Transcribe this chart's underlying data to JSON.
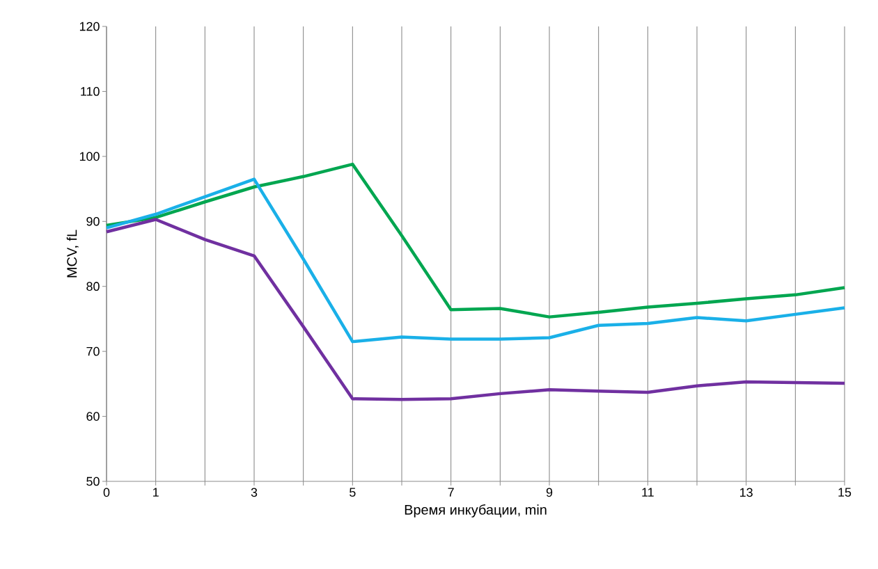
{
  "chart_data": {
    "type": "line",
    "xlabel": "Время инкубации, min",
    "ylabel": "MCV, fL",
    "x": [
      0,
      1,
      2,
      3,
      4,
      5,
      6,
      7,
      8,
      9,
      10,
      11,
      12,
      13,
      14,
      15
    ],
    "series": [
      {
        "color": "#00a650",
        "values": [
          89.4,
          90.6,
          93.0,
          95.3,
          96.9,
          98.8,
          87.8,
          76.4,
          76.6,
          75.3,
          76.0,
          76.8,
          77.4,
          78.1,
          78.7,
          79.8
        ]
      },
      {
        "color": "#1ab0e8",
        "values": [
          89.0,
          91.1,
          93.8,
          96.5,
          84.2,
          71.5,
          72.2,
          71.9,
          71.9,
          72.1,
          74.0,
          74.3,
          75.2,
          74.7,
          75.7,
          76.7
        ]
      },
      {
        "color": "#7030a0",
        "values": [
          88.4,
          90.3,
          87.2,
          84.7,
          73.8,
          62.7,
          62.6,
          62.7,
          63.5,
          64.1,
          63.9,
          63.7,
          64.7,
          65.3,
          65.2,
          65.1
        ]
      }
    ],
    "xlim": [
      0,
      15
    ],
    "ylim": [
      50,
      120
    ],
    "xticks": [
      0,
      1,
      {
        "value": 2,
        "label": null
      },
      3,
      {
        "value": 4,
        "label": null
      },
      5,
      {
        "value": 6,
        "label": null
      },
      7,
      {
        "value": 8,
        "label": null
      },
      9,
      {
        "value": 10,
        "label": null
      },
      11,
      {
        "value": 12,
        "label": null
      },
      13,
      {
        "value": 14,
        "label": null
      },
      15
    ],
    "yticks": [
      50,
      60,
      70,
      80,
      90,
      100,
      110,
      120
    ],
    "grid": "x",
    "marker": "none",
    "line_style": "solid"
  }
}
